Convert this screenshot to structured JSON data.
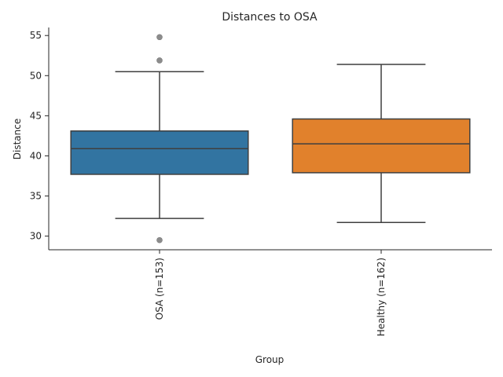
{
  "chart_data": {
    "type": "box",
    "title": "Distances to OSA",
    "xlabel": "Group",
    "ylabel": "Distance",
    "ylim": [
      28.3,
      56.0
    ],
    "yticks": [
      30,
      35,
      40,
      45,
      50,
      55
    ],
    "categories": [
      "OSA (n=153)",
      "Healthy (n=162)"
    ],
    "boxes": [
      {
        "name": "OSA (n=153)",
        "color": "#3274a1",
        "whisker_low": 32.2,
        "q1": 37.7,
        "median": 40.9,
        "q3": 43.1,
        "whisker_high": 50.5,
        "outliers": [
          29.5,
          51.9,
          54.8
        ]
      },
      {
        "name": "Healthy (n=162)",
        "color": "#e1812c",
        "whisker_low": 31.7,
        "q1": 37.9,
        "median": 41.5,
        "q3": 44.6,
        "whisker_high": 51.4,
        "outliers": []
      }
    ],
    "colors": {
      "line": "#3f3f3f",
      "outlier": "#8c8c8c",
      "axis": "#262626"
    }
  }
}
